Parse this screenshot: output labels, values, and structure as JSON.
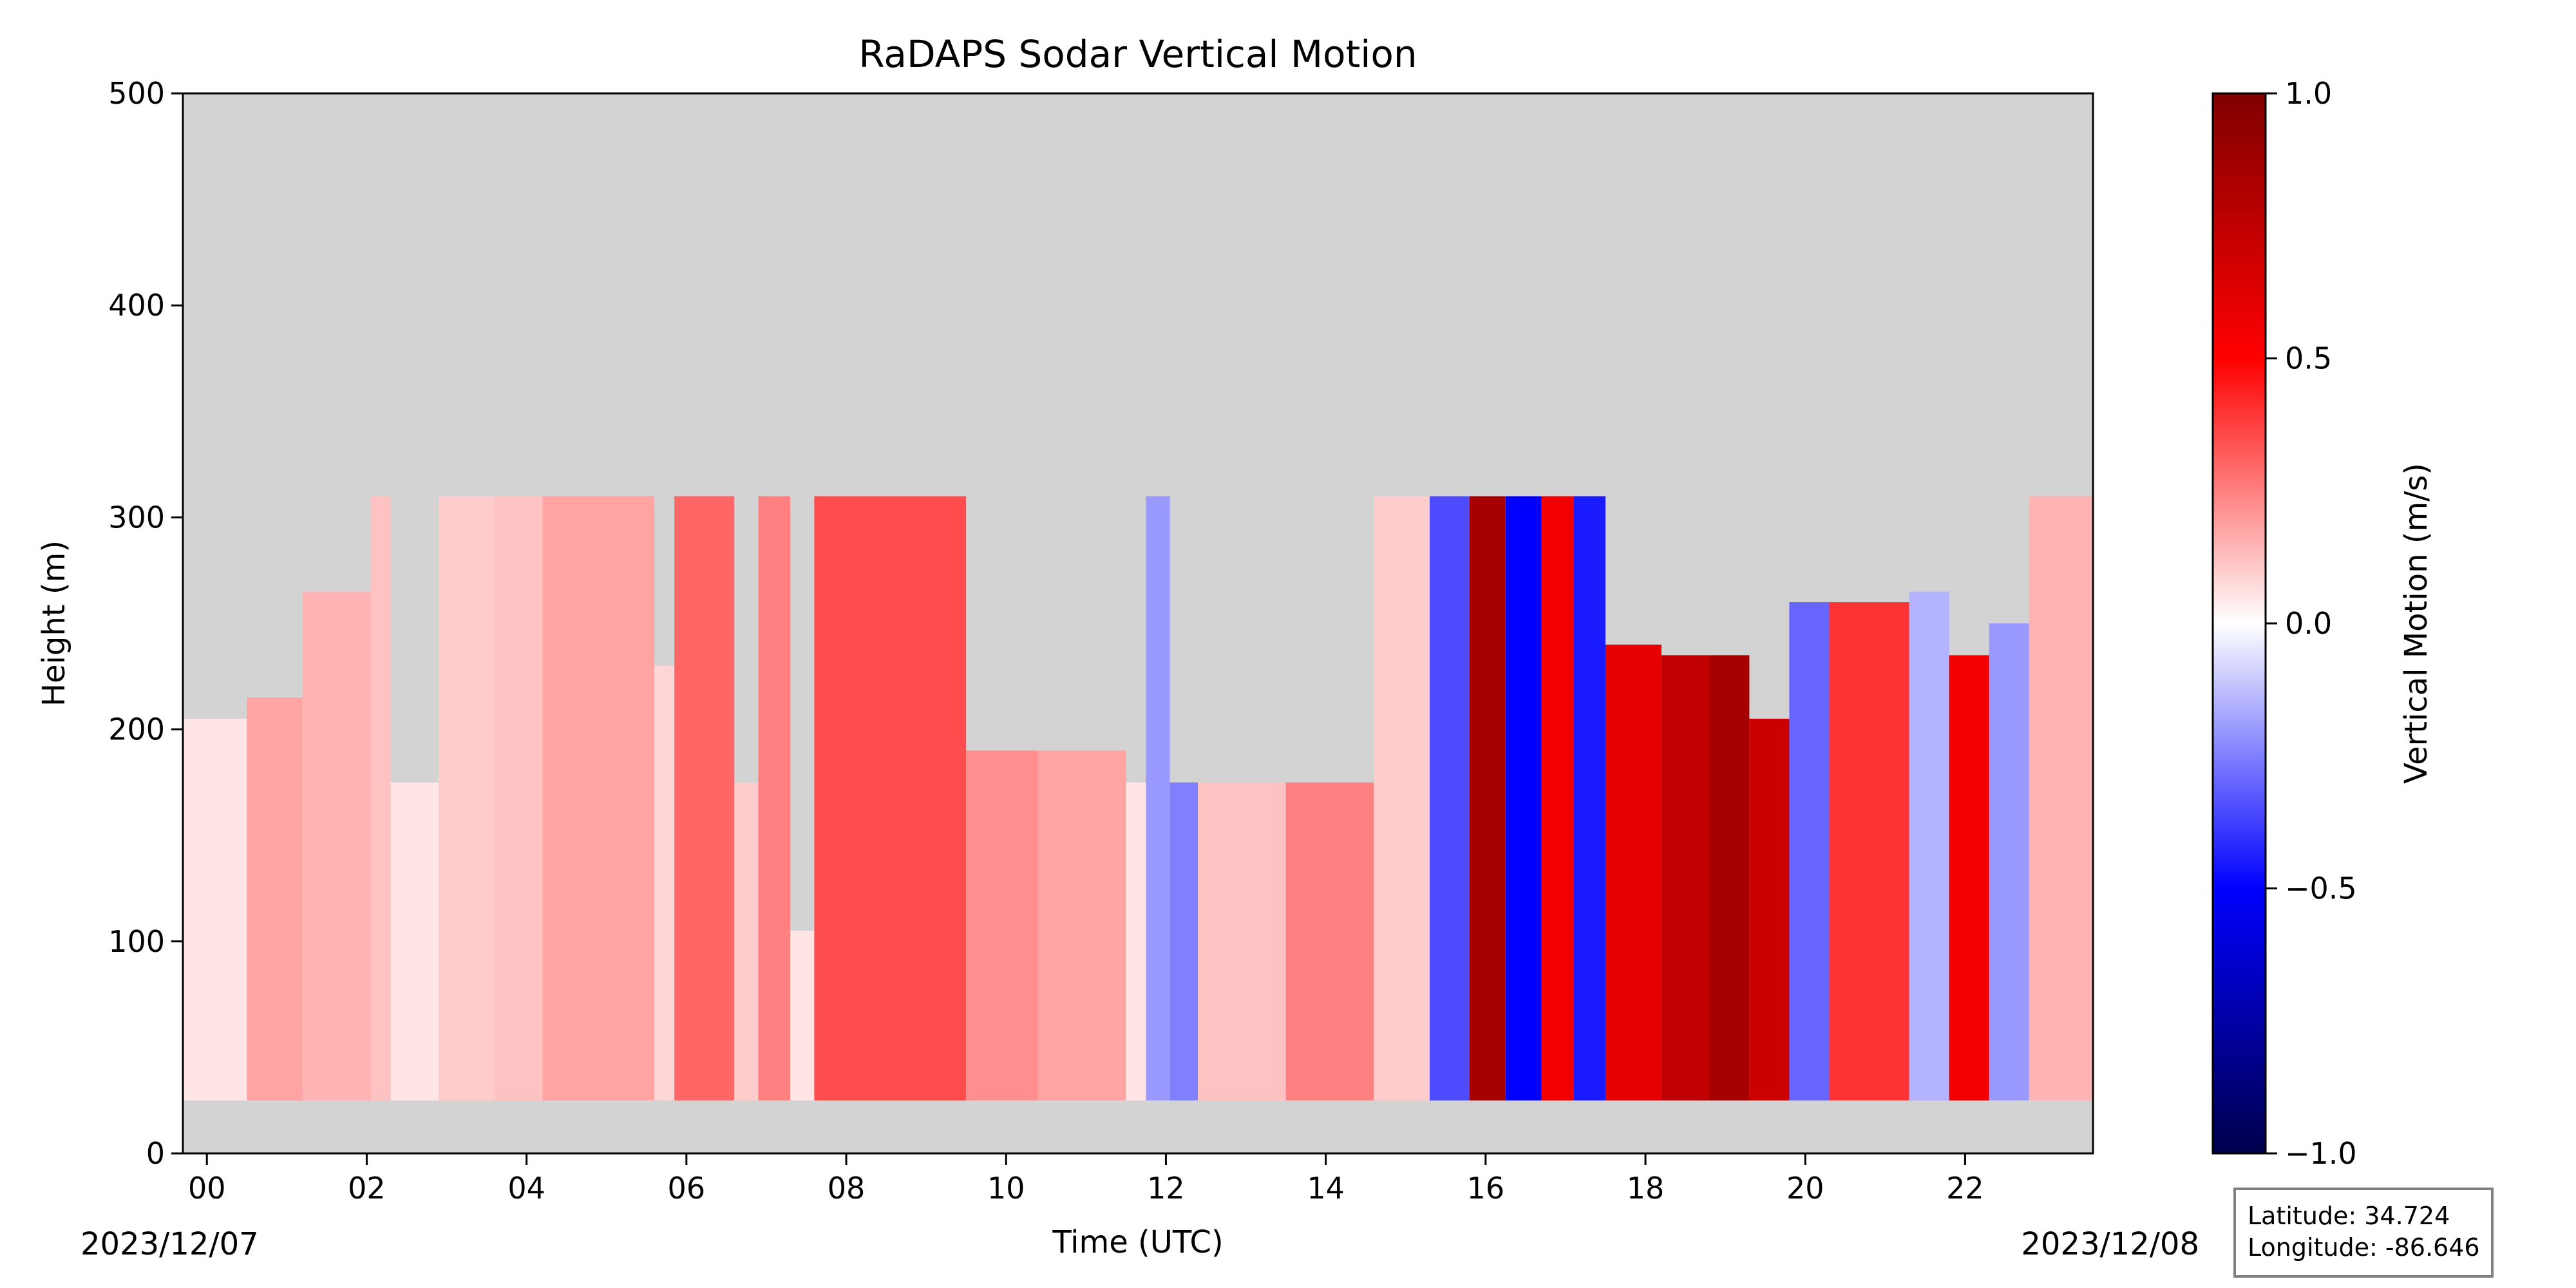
{
  "chart_data": {
    "type": "heatmap",
    "title": "RaDAPS Sodar Vertical Motion",
    "xlabel": "Time (UTC)",
    "ylabel": "Height (m)",
    "x_unit": "hours UTC",
    "xlim": [
      -0.3,
      23.6
    ],
    "ylim": [
      0,
      500
    ],
    "x_ticks": [
      0,
      2,
      4,
      6,
      8,
      10,
      12,
      14,
      16,
      18,
      20,
      22
    ],
    "x_tick_labels": [
      "00",
      "02",
      "04",
      "06",
      "08",
      "10",
      "12",
      "14",
      "16",
      "18",
      "20",
      "22"
    ],
    "y_ticks": [
      0,
      100,
      200,
      300,
      400,
      500
    ],
    "y_tick_labels": [
      "0",
      "100",
      "200",
      "300",
      "400",
      "500"
    ],
    "start_date": "2023/12/07",
    "end_date": "2023/12/08",
    "background_color": "#d3d3d3",
    "colorbar": {
      "label": "Vertical Motion (m/s)",
      "range": [
        -1.0,
        1.0
      ],
      "ticks": [
        1.0,
        0.5,
        0.0,
        -0.5,
        -1.0
      ],
      "tick_labels": [
        "1.0",
        "0.5",
        "0.0",
        "−0.5",
        "−1.0"
      ],
      "colormap": "seismic"
    },
    "min_height_m": 25,
    "profiles": [
      {
        "t0": -0.3,
        "t1": 0.5,
        "top": 205,
        "w": 0.05
      },
      {
        "t0": 0.5,
        "t1": 1.2,
        "top": 215,
        "w": 0.18
      },
      {
        "t0": 1.2,
        "t1": 2.05,
        "top": 265,
        "w": 0.15
      },
      {
        "t0": 2.05,
        "t1": 2.3,
        "top": 310,
        "w": 0.12
      },
      {
        "t0": 2.3,
        "t1": 2.9,
        "top": 175,
        "w": 0.05
      },
      {
        "t0": 2.9,
        "t1": 3.6,
        "top": 310,
        "w": 0.1
      },
      {
        "t0": 3.6,
        "t1": 4.2,
        "top": 310,
        "w": 0.12
      },
      {
        "t0": 4.2,
        "t1": 5.6,
        "top": 310,
        "w": 0.18
      },
      {
        "t0": 5.6,
        "t1": 5.85,
        "top": 230,
        "w": 0.08
      },
      {
        "t0": 5.85,
        "t1": 6.6,
        "top": 310,
        "w": 0.3
      },
      {
        "t0": 6.6,
        "t1": 6.9,
        "top": 175,
        "w": 0.1
      },
      {
        "t0": 6.9,
        "t1": 7.3,
        "top": 310,
        "w": 0.25
      },
      {
        "t0": 7.3,
        "t1": 7.6,
        "top": 105,
        "w": 0.05
      },
      {
        "t0": 7.6,
        "t1": 9.5,
        "top": 310,
        "w": 0.35
      },
      {
        "t0": 9.5,
        "t1": 10.4,
        "top": 190,
        "w": 0.22
      },
      {
        "t0": 10.4,
        "t1": 11.5,
        "top": 190,
        "w": 0.18
      },
      {
        "t0": 11.5,
        "t1": 11.75,
        "top": 175,
        "w": 0.05
      },
      {
        "t0": 11.75,
        "t1": 12.05,
        "top": 310,
        "w": -0.2
      },
      {
        "t0": 12.05,
        "t1": 12.4,
        "top": 175,
        "w": -0.25
      },
      {
        "t0": 12.4,
        "t1": 13.5,
        "top": 175,
        "w": 0.12
      },
      {
        "t0": 13.5,
        "t1": 14.6,
        "top": 175,
        "w": 0.25
      },
      {
        "t0": 14.6,
        "t1": 15.3,
        "top": 310,
        "w": 0.1
      },
      {
        "t0": 15.3,
        "t1": 15.8,
        "top": 310,
        "w": -0.35
      },
      {
        "t0": 15.8,
        "t1": 16.25,
        "top": 310,
        "w": 0.85
      },
      {
        "t0": 16.25,
        "t1": 16.7,
        "top": 310,
        "w": -0.5
      },
      {
        "t0": 16.7,
        "t1": 17.1,
        "top": 310,
        "w": 0.55
      },
      {
        "t0": 17.1,
        "t1": 17.5,
        "top": 310,
        "w": -0.45
      },
      {
        "t0": 17.5,
        "t1": 18.2,
        "top": 240,
        "w": 0.6
      },
      {
        "t0": 18.2,
        "t1": 18.8,
        "top": 235,
        "w": 0.75
      },
      {
        "t0": 18.8,
        "t1": 19.3,
        "top": 235,
        "w": 0.85
      },
      {
        "t0": 19.3,
        "t1": 19.8,
        "top": 205,
        "w": 0.7
      },
      {
        "t0": 19.8,
        "t1": 20.3,
        "top": 260,
        "w": -0.3
      },
      {
        "t0": 20.3,
        "t1": 21.3,
        "top": 260,
        "w": 0.4
      },
      {
        "t0": 21.3,
        "t1": 21.8,
        "top": 265,
        "w": -0.15
      },
      {
        "t0": 21.8,
        "t1": 22.3,
        "top": 235,
        "w": 0.55
      },
      {
        "t0": 22.3,
        "t1": 22.8,
        "top": 250,
        "w": -0.2
      },
      {
        "t0": 22.8,
        "t1": 23.6,
        "top": 310,
        "w": 0.15
      }
    ]
  },
  "location": {
    "latitude": "Latitude: 34.724",
    "longitude": "Longitude: -86.646"
  }
}
